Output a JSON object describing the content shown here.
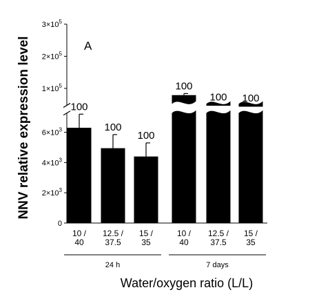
{
  "chart_data": {
    "type": "bar",
    "panel_label": "A",
    "ylabel": "NNV relative expression level",
    "xlabel": "Water/oxygen ratio (L/L)",
    "categories": [
      {
        "line1": "10 /",
        "line2": "40"
      },
      {
        "line1": "12.5 /",
        "line2": "37.5"
      },
      {
        "line1": "15 /",
        "line2": "35"
      },
      {
        "line1": "10 /",
        "line2": "40"
      },
      {
        "line1": "12.5 /",
        "line2": "37.5"
      },
      {
        "line1": "15 /",
        "line2": "35"
      }
    ],
    "groups": [
      {
        "label": "24 h",
        "indices": [
          0,
          1,
          2
        ]
      },
      {
        "label": "7 days",
        "indices": [
          3,
          4,
          5
        ]
      }
    ],
    "values": [
      6300,
      4950,
      4400,
      79000,
      46000,
      43000
    ],
    "errors": [
      900,
      900,
      900,
      5000,
      3000,
      3000
    ],
    "data_labels": [
      "100",
      "100",
      "100",
      "100",
      "100",
      "100"
    ],
    "y_axis": {
      "broken": true,
      "lower_range": [
        0,
        7500
      ],
      "lower_ticks": [
        {
          "value": 0,
          "mantissa": "0",
          "exp": ""
        },
        {
          "value": 2000,
          "mantissa": "2×10",
          "exp": "3"
        },
        {
          "value": 4000,
          "mantissa": "4×10",
          "exp": "3"
        },
        {
          "value": 6000,
          "mantissa": "6×10",
          "exp": "3"
        }
      ],
      "upper_range": [
        30000,
        300000
      ],
      "upper_ticks": [
        {
          "value": 100000,
          "mantissa": "1×10",
          "exp": "5"
        },
        {
          "value": 200000,
          "mantissa": "2×10",
          "exp": "5"
        },
        {
          "value": 300000,
          "mantissa": "3×10",
          "exp": "5"
        }
      ]
    },
    "colors": {
      "bar": "#000000",
      "axis": "#000000"
    }
  }
}
